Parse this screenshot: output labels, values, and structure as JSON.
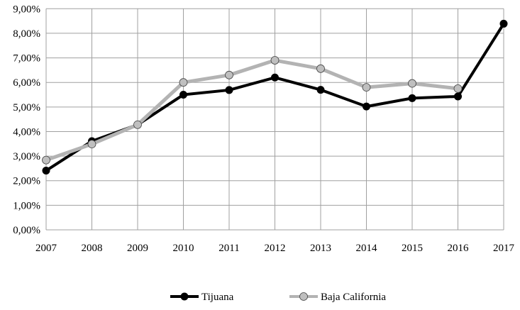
{
  "chart_data": {
    "type": "line",
    "title": "",
    "xlabel": "",
    "ylabel": "",
    "categories": [
      "2007",
      "2008",
      "2009",
      "2010",
      "2011",
      "2012",
      "2013",
      "2014",
      "2015",
      "2016",
      "2017"
    ],
    "ylim": [
      0,
      9
    ],
    "y_ticks": [
      "0,00%",
      "1,00%",
      "2,00%",
      "3,00%",
      "4,00%",
      "5,00%",
      "6,00%",
      "7,00%",
      "8,00%",
      "9,00%"
    ],
    "grid": true,
    "legend_position": "bottom",
    "series": [
      {
        "name": "Tijuana",
        "color": "#000000",
        "marker_fill": "#000000",
        "values": [
          2.41,
          3.61,
          4.28,
          5.5,
          5.69,
          6.2,
          5.7,
          5.02,
          5.36,
          5.43,
          8.39
        ]
      },
      {
        "name": "Baja California",
        "color": "#b3b3b3",
        "marker_fill": "#bfbfbf",
        "values": [
          2.84,
          3.49,
          4.28,
          6.0,
          6.3,
          6.9,
          6.56,
          5.8,
          5.96,
          5.75,
          null
        ]
      }
    ]
  }
}
